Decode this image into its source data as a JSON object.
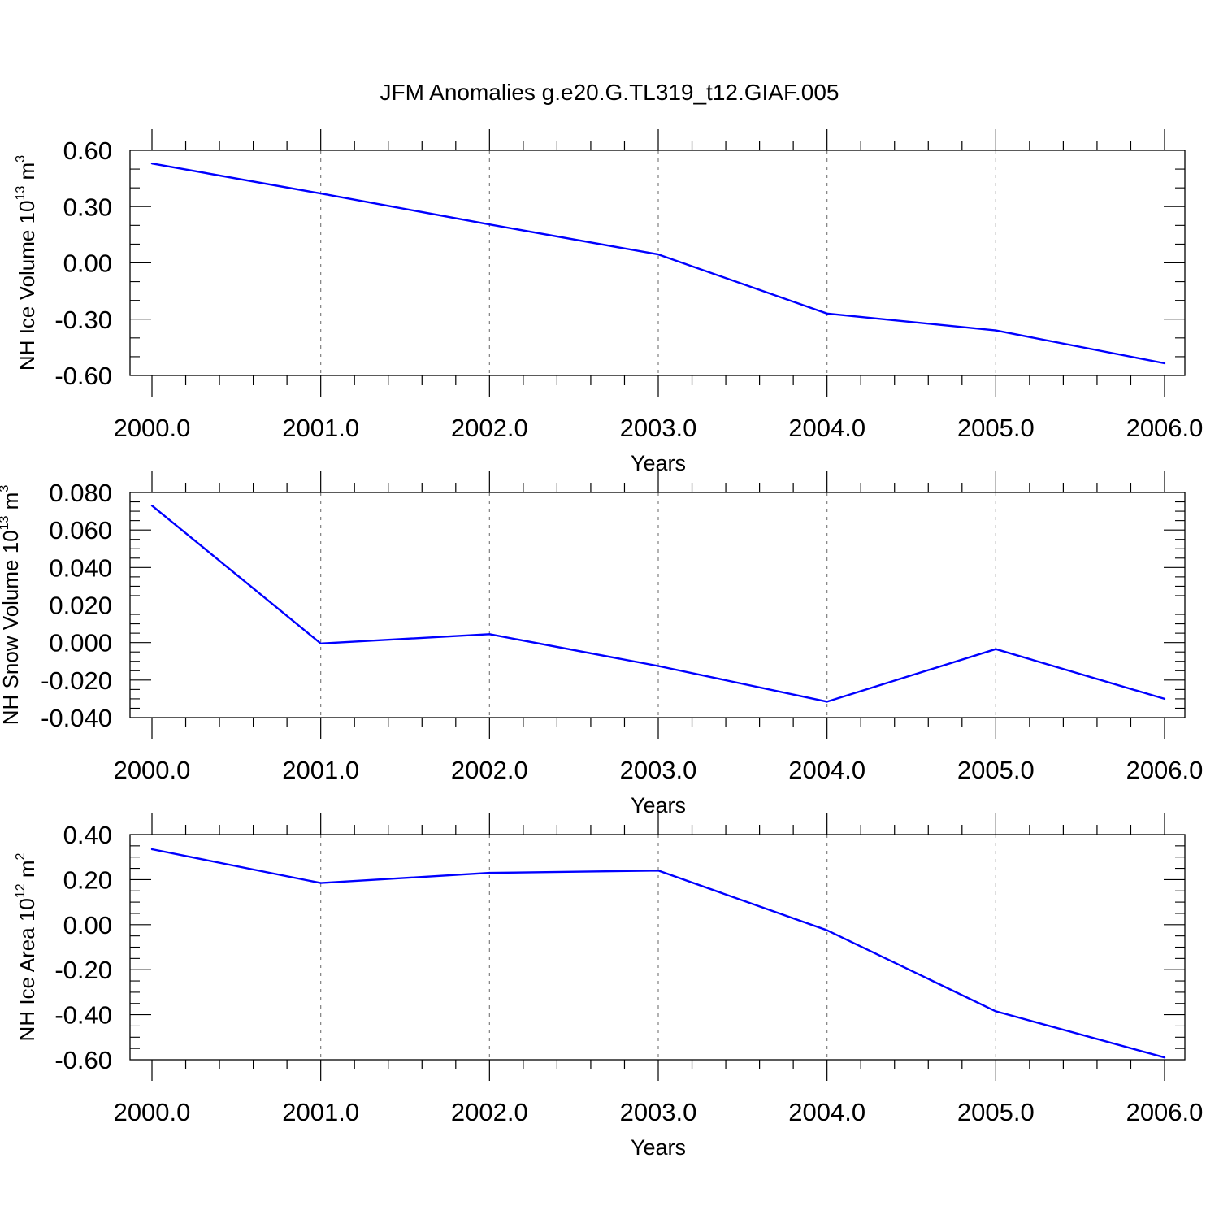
{
  "title": "JFM Anomalies g.e20.G.TL319_t12.GIAF.005",
  "colors": {
    "series_line": "#0000ff",
    "axis": "#000000",
    "gridline": "#808080"
  },
  "chart_data": [
    {
      "type": "line",
      "title": "JFM Anomalies g.e20.G.TL319_t12.GIAF.005",
      "xlabel": "Years",
      "ylabel": {
        "text": "NH Ice Volume 10",
        "sup": "13",
        "unit": " m",
        "unit_sup": "3"
      },
      "x": [
        2000,
        2001,
        2002,
        2003,
        2004,
        2005,
        2006
      ],
      "y": [
        0.53,
        0.37,
        0.205,
        0.045,
        -0.27,
        -0.36,
        -0.535
      ],
      "xlim": [
        2000,
        2006.12
      ],
      "ylim": [
        -0.6,
        0.6
      ],
      "x_ticks": [
        2000,
        2001,
        2002,
        2003,
        2004,
        2005,
        2006
      ],
      "x_tick_labels": [
        "2000.0",
        "2001.0",
        "2002.0",
        "2003.0",
        "2004.0",
        "2005.0",
        "2006.0"
      ],
      "y_ticks": [
        -0.6,
        -0.3,
        0.0,
        0.3,
        0.6
      ],
      "y_tick_labels": [
        "-0.60",
        "-0.30",
        "0.00",
        "0.30",
        "0.60"
      ],
      "y_minor_step": 0.1,
      "grid": "vertical-dashed"
    },
    {
      "type": "line",
      "xlabel": "Years",
      "ylabel": {
        "text": "NH Snow Volume 10",
        "sup": "13",
        "unit": " m",
        "unit_sup": "3"
      },
      "x": [
        2000,
        2001,
        2002,
        2003,
        2004,
        2005,
        2006
      ],
      "y": [
        0.073,
        -0.0005,
        0.0045,
        -0.0125,
        -0.0315,
        -0.0035,
        -0.03
      ],
      "xlim": [
        2000,
        2006.12
      ],
      "ylim": [
        -0.04,
        0.08
      ],
      "x_ticks": [
        2000,
        2001,
        2002,
        2003,
        2004,
        2005,
        2006
      ],
      "x_tick_labels": [
        "2000.0",
        "2001.0",
        "2002.0",
        "2003.0",
        "2004.0",
        "2005.0",
        "2006.0"
      ],
      "y_ticks": [
        -0.04,
        -0.02,
        0.0,
        0.02,
        0.04,
        0.06,
        0.08
      ],
      "y_tick_labels": [
        "-0.040",
        "-0.020",
        "0.000",
        "0.020",
        "0.040",
        "0.060",
        "0.080"
      ],
      "y_minor_step": 0.005,
      "grid": "vertical-dashed"
    },
    {
      "type": "line",
      "xlabel": "Years",
      "ylabel": {
        "text": "NH Ice Area 10",
        "sup": "12",
        "unit": " m",
        "unit_sup": "2"
      },
      "x": [
        2000,
        2001,
        2002,
        2003,
        2004,
        2005,
        2006
      ],
      "y": [
        0.335,
        0.185,
        0.23,
        0.24,
        -0.025,
        -0.385,
        -0.59
      ],
      "xlim": [
        2000,
        2006.12
      ],
      "ylim": [
        -0.6,
        0.4
      ],
      "x_ticks": [
        2000,
        2001,
        2002,
        2003,
        2004,
        2005,
        2006
      ],
      "x_tick_labels": [
        "2000.0",
        "2001.0",
        "2002.0",
        "2003.0",
        "2004.0",
        "2005.0",
        "2006.0"
      ],
      "y_ticks": [
        -0.6,
        -0.4,
        -0.2,
        0.0,
        0.2,
        0.4
      ],
      "y_tick_labels": [
        "-0.60",
        "-0.40",
        "-0.20",
        "0.00",
        "0.20",
        "0.40"
      ],
      "y_minor_step": 0.05,
      "grid": "vertical-dashed"
    }
  ]
}
